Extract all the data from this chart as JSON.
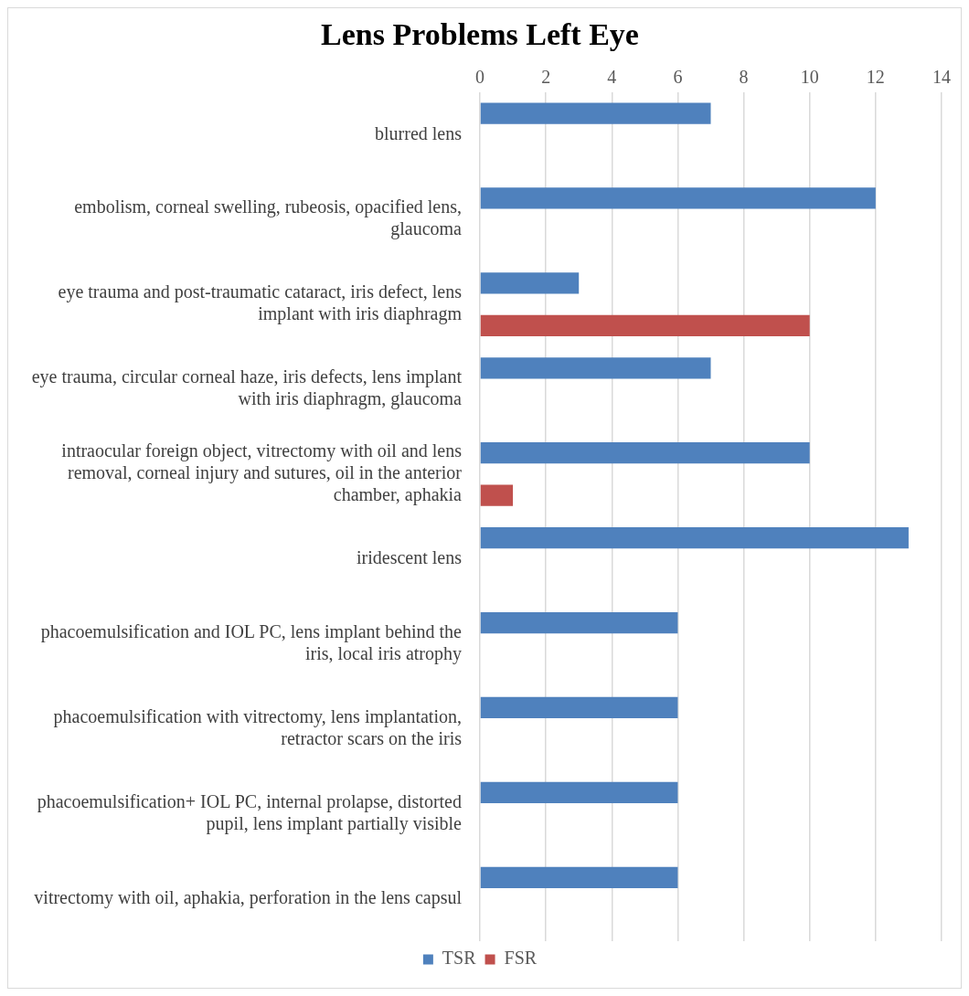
{
  "chart_data": {
    "type": "bar",
    "orientation": "horizontal",
    "title": "Lens Problems Left Eye",
    "categories": [
      "blurred lens",
      "embolism, corneal swelling, rubeosis, opacified lens, glaucoma",
      "eye trauma and post-traumatic cataract, iris defect, lens implant with iris diaphragm",
      "eye trauma, circular corneal haze, iris defects, lens implant with iris diaphragm, glaucoma",
      "intraocular foreign object, vitrectomy with oil and lens removal, corneal injury and sutures, oil in the anterior chamber, aphakia",
      "iridescent lens",
      "phacoemulsification and IOL PC, lens implant behind the iris, local iris atrophy",
      "phacoemulsification with vitrectomy, lens implantation, retractor scars on the iris",
      "phacoemulsification+ IOL PC, internal prolapse, distorted pupil, lens implant partially visible",
      "vitrectomy with oil, aphakia, perforation in the lens capsul"
    ],
    "series": [
      {
        "name": "TSR",
        "color": "#4f81bd",
        "values": [
          7,
          12,
          3,
          7,
          10,
          13,
          6,
          6,
          6,
          6
        ]
      },
      {
        "name": "FSR",
        "color": "#c0504d",
        "values": [
          null,
          null,
          10,
          null,
          1,
          null,
          null,
          null,
          null,
          null
        ]
      }
    ],
    "xlim": [
      0,
      14
    ],
    "xticks": [
      0,
      2,
      4,
      6,
      8,
      10,
      12,
      14
    ],
    "grid": "x",
    "legend": "bottom"
  }
}
